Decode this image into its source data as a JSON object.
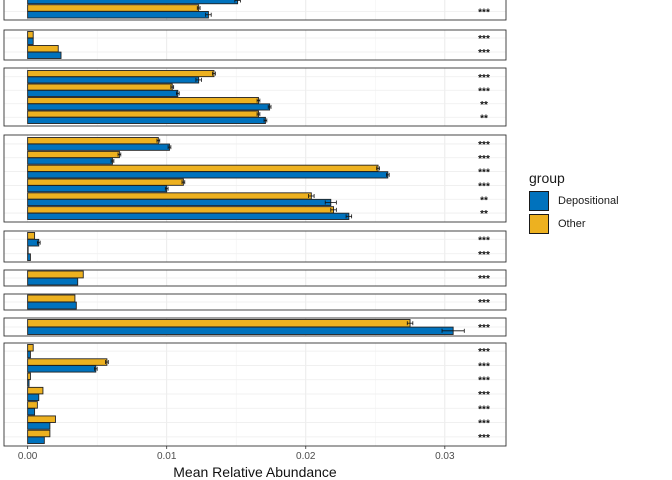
{
  "chart_data": {
    "type": "bar",
    "orientation": "horizontal",
    "xlabel": "Mean Relative Abundance",
    "ylabel": "",
    "xlim": [
      -0.0017,
      0.0344
    ],
    "xticks": [
      0.0,
      0.01,
      0.02,
      0.03
    ],
    "xtick_labels": [
      "0.00",
      "0.01",
      "0.02",
      "0.03"
    ],
    "grid": true,
    "legend": {
      "title": "group",
      "placement": "right",
      "entries": [
        {
          "name": "Depositional",
          "color": "#0072BD"
        },
        {
          "name": "Other",
          "color": "#EDB120"
        }
      ]
    },
    "facets": [
      {
        "rows": [
          {
            "other": null,
            "depositional": 0.0151,
            "dep_err": 0.0002,
            "other_err": null,
            "signif": ""
          },
          {
            "other": 0.0123,
            "depositional": 0.013,
            "dep_err": 0.0002,
            "other_err": 0.0001,
            "signif": "***"
          }
        ]
      },
      {
        "rows": [
          {
            "other": 0.0004,
            "depositional": 0.0004,
            "dep_err": 0.0,
            "other_err": 0.0,
            "signif": "***"
          },
          {
            "other": 0.0022,
            "depositional": 0.0024,
            "dep_err": 0.0,
            "other_err": 0.0,
            "signif": "***"
          }
        ]
      },
      {
        "rows": [
          {
            "other": 0.0134,
            "depositional": 0.0123,
            "dep_err": 0.0002,
            "other_err": 0.0001,
            "signif": "***"
          },
          {
            "other": 0.0104,
            "depositional": 0.0108,
            "dep_err": 0.0001,
            "other_err": 0.0001,
            "signif": "***"
          },
          {
            "other": 0.0166,
            "depositional": 0.0174,
            "dep_err": 0.0001,
            "other_err": 0.0001,
            "signif": "**"
          },
          {
            "other": 0.0166,
            "depositional": 0.0171,
            "dep_err": 0.0001,
            "other_err": 0.0001,
            "signif": "**"
          }
        ]
      },
      {
        "rows": [
          {
            "other": 0.0094,
            "depositional": 0.0102,
            "dep_err": 0.0001,
            "other_err": 0.0001,
            "signif": "***"
          },
          {
            "other": 0.0066,
            "depositional": 0.0061,
            "dep_err": 0.0001,
            "other_err": 0.0001,
            "signif": "***"
          },
          {
            "other": 0.0252,
            "depositional": 0.0259,
            "dep_err": 0.0001,
            "other_err": 0.0001,
            "signif": "***"
          },
          {
            "other": 0.0112,
            "depositional": 0.01,
            "dep_err": 0.0001,
            "other_err": 0.0001,
            "signif": "***"
          },
          {
            "other": 0.0204,
            "depositional": 0.0218,
            "dep_err": 0.0004,
            "other_err": 0.0002,
            "signif": "**"
          },
          {
            "other": 0.022,
            "depositional": 0.0231,
            "dep_err": 0.0002,
            "other_err": 0.0002,
            "signif": "**"
          }
        ]
      },
      {
        "rows": [
          {
            "other": 0.0005,
            "depositional": 0.0008,
            "dep_err": 0.0001,
            "other_err": 0.0,
            "signif": "***"
          },
          {
            "other": 0.0,
            "depositional": 0.0002,
            "dep_err": 0.0,
            "other_err": 0.0,
            "signif": "***"
          }
        ]
      },
      {
        "rows": [
          {
            "other": 0.004,
            "depositional": 0.0036,
            "dep_err": 0.0,
            "other_err": 0.0,
            "signif": "***"
          }
        ]
      },
      {
        "rows": [
          {
            "other": 0.0034,
            "depositional": 0.0035,
            "dep_err": 0.0,
            "other_err": 0.0,
            "signif": "***"
          }
        ]
      },
      {
        "rows": [
          {
            "other": 0.0275,
            "depositional": 0.0306,
            "dep_err": 0.0008,
            "other_err": 0.0002,
            "signif": "***"
          }
        ]
      },
      {
        "rows": [
          {
            "other": 0.0004,
            "depositional": 0.0002,
            "dep_err": 0.0,
            "other_err": 0.0,
            "signif": "***"
          },
          {
            "other": 0.0057,
            "depositional": 0.0049,
            "dep_err": 0.0001,
            "other_err": 0.0001,
            "signif": "***"
          },
          {
            "other": 0.0002,
            "depositional": 0.0001,
            "dep_err": 0.0,
            "other_err": 0.0,
            "signif": "***"
          },
          {
            "other": 0.0011,
            "depositional": 0.0008,
            "dep_err": 0.0,
            "other_err": 0.0,
            "signif": "***"
          },
          {
            "other": 0.0007,
            "depositional": 0.0005,
            "dep_err": 0.0,
            "other_err": 0.0,
            "signif": "***"
          },
          {
            "other": 0.002,
            "depositional": 0.0016,
            "dep_err": 0.0,
            "other_err": 0.0,
            "signif": "***"
          },
          {
            "other": 0.0016,
            "depositional": 0.0012,
            "dep_err": 0.0,
            "other_err": 0.0,
            "signif": "***"
          }
        ]
      }
    ]
  }
}
